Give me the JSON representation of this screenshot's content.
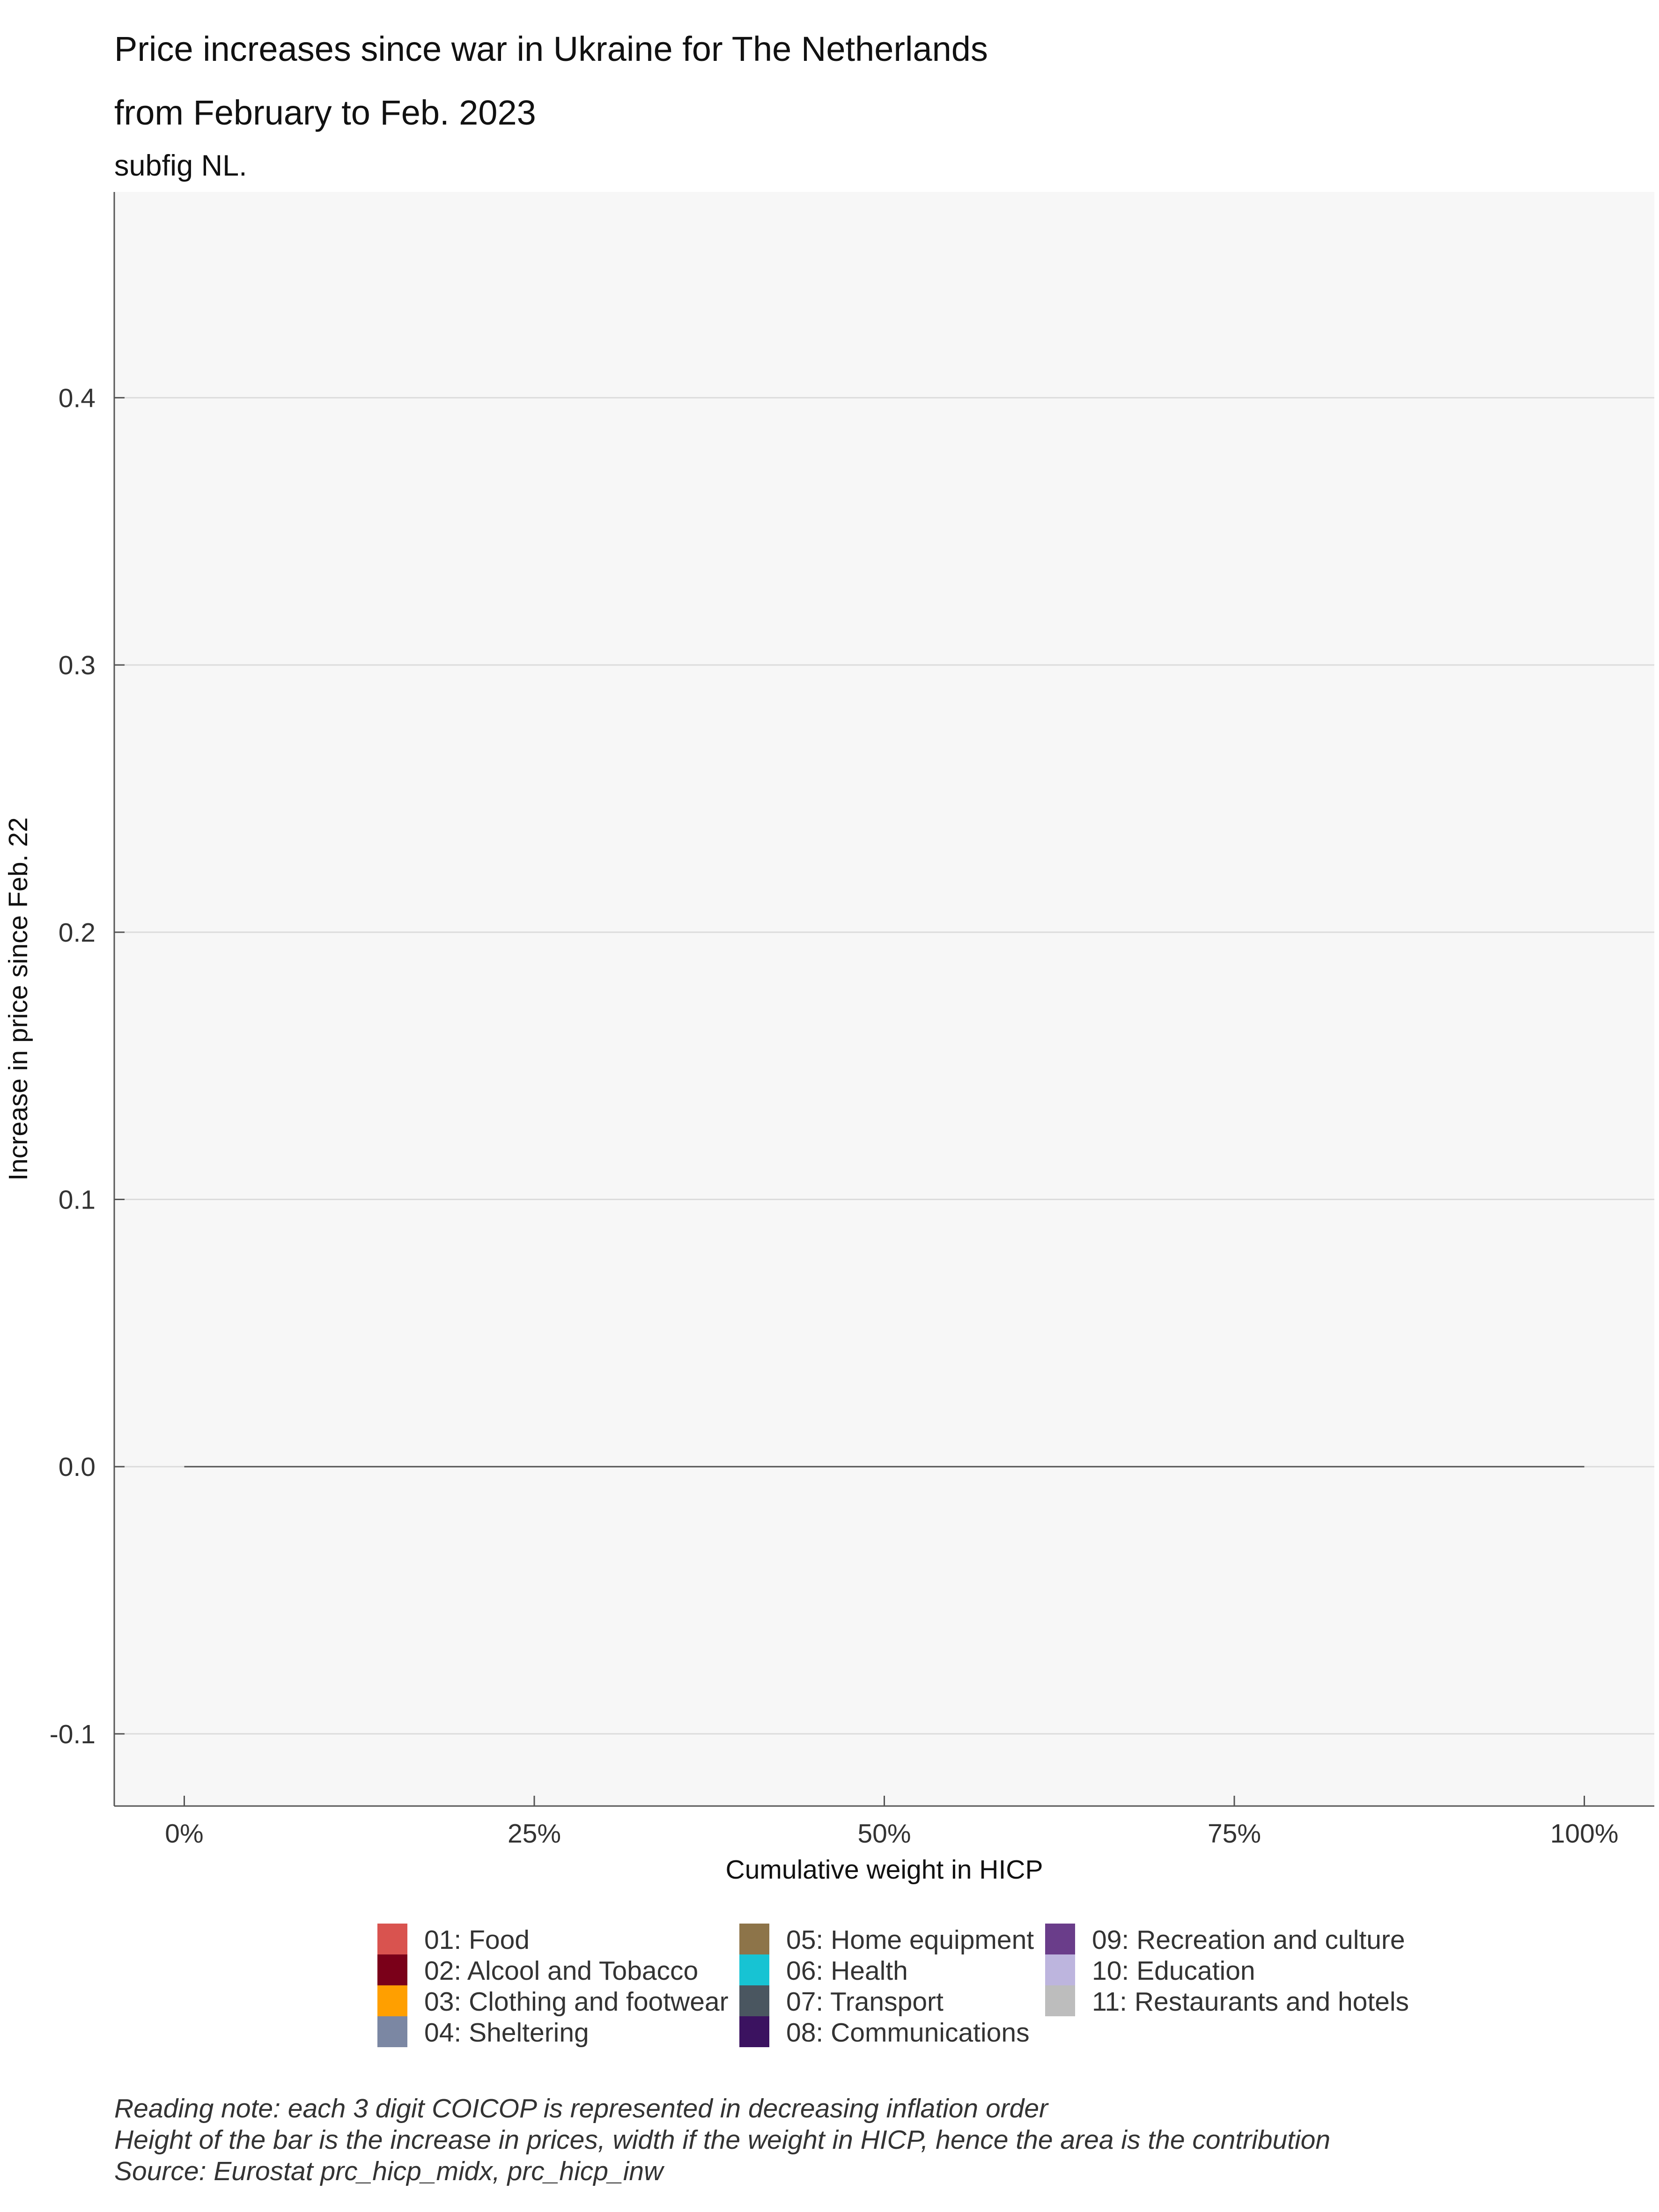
{
  "chart_data": {
    "type": "bar",
    "title": "Price increases since war in Ukraine for The Netherlands",
    "title_line2": "from February to Feb. 2023",
    "subtitle": "subfig NL.",
    "xlabel": "Cumulative weight in HICP",
    "ylabel": "Increase in price since Feb. 22",
    "xlim": [
      -0.05,
      1.05
    ],
    "ylim": [
      -0.127,
      0.477
    ],
    "x_ticks": [
      0,
      0.25,
      0.5,
      0.75,
      1.0
    ],
    "x_tick_labels": [
      "0%",
      "25%",
      "50%",
      "75%",
      "100%"
    ],
    "y_ticks": [
      -0.1,
      0.0,
      0.1,
      0.2,
      0.3,
      0.4
    ],
    "y_tick_labels": [
      "-0.1",
      "0.0",
      "0.1",
      "0.2",
      "0.3",
      "0.4"
    ],
    "grid": true,
    "baseline": {
      "value": 0.0,
      "x_from": 0,
      "x_to": 1.0
    },
    "bars": [],
    "legend_placement": "bottom",
    "legend": [
      {
        "label": "01: Food",
        "color": "#d9534f"
      },
      {
        "label": "02: Alcool and Tobacco",
        "color": "#7a0019"
      },
      {
        "label": "03: Clothing and footwear",
        "color": "#ff9f00"
      },
      {
        "label": "04: Sheltering",
        "color": "#7b87a3"
      },
      {
        "label": "05: Home equipment",
        "color": "#8d7449"
      },
      {
        "label": "06: Health",
        "color": "#17c3d3"
      },
      {
        "label": "07: Transport",
        "color": "#4a5660"
      },
      {
        "label": "08: Communications",
        "color": "#3b1260"
      },
      {
        "label": "09: Recreation and culture",
        "color": "#6a3d8a"
      },
      {
        "label": "10: Education",
        "color": "#bdb5de"
      },
      {
        "label": "11: Restaurants and hotels",
        "color": "#bdbdbd"
      }
    ]
  },
  "notes": [
    "Reading note: each 3 digit COICOP is represented in decreasing inflation order",
    "Height of the bar is the increase in prices, width if the weight in HICP, hence the area is the contribution",
    "Source: Eurostat prc_hicp_midx, prc_hicp_inw"
  ]
}
